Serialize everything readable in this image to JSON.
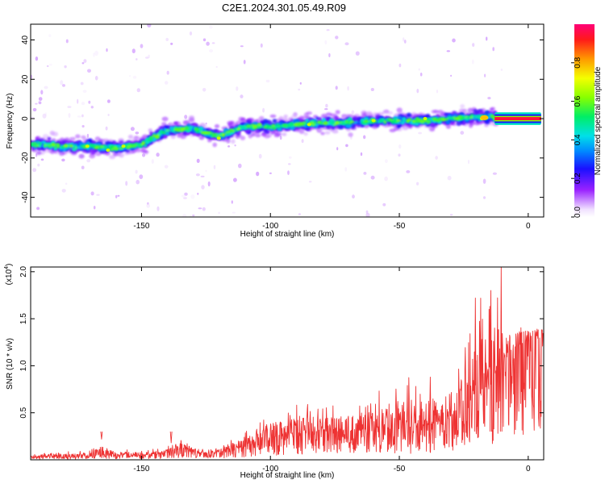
{
  "chart_data": [
    {
      "type": "heatmap",
      "title": "C2E1.2024.301.05.49.R09",
      "xlabel": "Height of straight line (km)",
      "ylabel": "Frequency (Hz)",
      "xlim": [
        -193,
        6
      ],
      "ylim": [
        -50,
        48
      ],
      "x_ticks": [
        -150,
        -100,
        -50,
        0
      ],
      "y_ticks": [
        -40,
        -20,
        0,
        20,
        40
      ],
      "colorbar": {
        "label": "Normalized spectral amplitude",
        "range": [
          0,
          1
        ],
        "ticks": [
          0.0,
          0.2,
          0.4,
          0.6,
          0.8
        ]
      },
      "ridge": {
        "x": [
          -193,
          -180,
          -170,
          -160,
          -150,
          -140,
          -130,
          -120,
          -110,
          -100,
          -90,
          -80,
          -70,
          -60,
          -50,
          -40,
          -30,
          -20,
          -15,
          -12,
          5
        ],
        "y": [
          -13,
          -14,
          -14,
          -15,
          -13,
          -6,
          -5,
          -9,
          -4,
          -4,
          -3,
          -2,
          -2,
          -1,
          -1,
          -1,
          0,
          1,
          1,
          0,
          0
        ]
      }
    },
    {
      "type": "line",
      "xlabel": "Height of straight line (km)",
      "ylabel": "SNR (10 * v/v)",
      "y_multiplier": "(x10",
      "y_exponent": "4",
      "y_multiplier_close": ")",
      "xlim": [
        -193,
        6
      ],
      "ylim": [
        0,
        2.05
      ],
      "x_ticks": [
        -150,
        -100,
        -50,
        0
      ],
      "y_ticks": [
        0.5,
        1.0,
        1.5,
        2.0
      ],
      "series_color": "#ee3333",
      "envelope": {
        "x": [
          -193,
          -170,
          -166,
          -160,
          -150,
          -140,
          -135,
          -125,
          -120,
          -110,
          -100,
          -90,
          -80,
          -70,
          -60,
          -50,
          -40,
          -30,
          -25,
          -20,
          -15,
          -12,
          -10,
          -8,
          -5,
          0,
          5
        ],
        "mean": [
          0.03,
          0.04,
          0.08,
          0.05,
          0.05,
          0.07,
          0.12,
          0.06,
          0.08,
          0.15,
          0.22,
          0.3,
          0.3,
          0.3,
          0.32,
          0.32,
          0.35,
          0.45,
          0.55,
          0.7,
          0.8,
          0.9,
          1.0,
          1.1,
          1.2,
          1.25,
          1.3
        ],
        "peak": [
          0.08,
          0.1,
          0.22,
          0.12,
          0.1,
          0.14,
          0.22,
          0.12,
          0.14,
          0.3,
          0.55,
          0.6,
          0.6,
          0.6,
          0.7,
          0.9,
          0.9,
          1.0,
          1.25,
          1.7,
          1.8,
          2.05,
          1.7,
          1.55,
          1.5,
          1.5,
          1.45
        ]
      },
      "highlight_peaks": [
        {
          "x": -165.5,
          "y": 0.22
        },
        {
          "x": -138.5,
          "y": 0.18
        },
        {
          "x": -14.5,
          "y": 1.8
        },
        {
          "x": -10.5,
          "y": 2.05
        },
        {
          "x": -20.5,
          "y": 1.72
        },
        {
          "x": -38,
          "y": 0.88
        }
      ]
    }
  ]
}
